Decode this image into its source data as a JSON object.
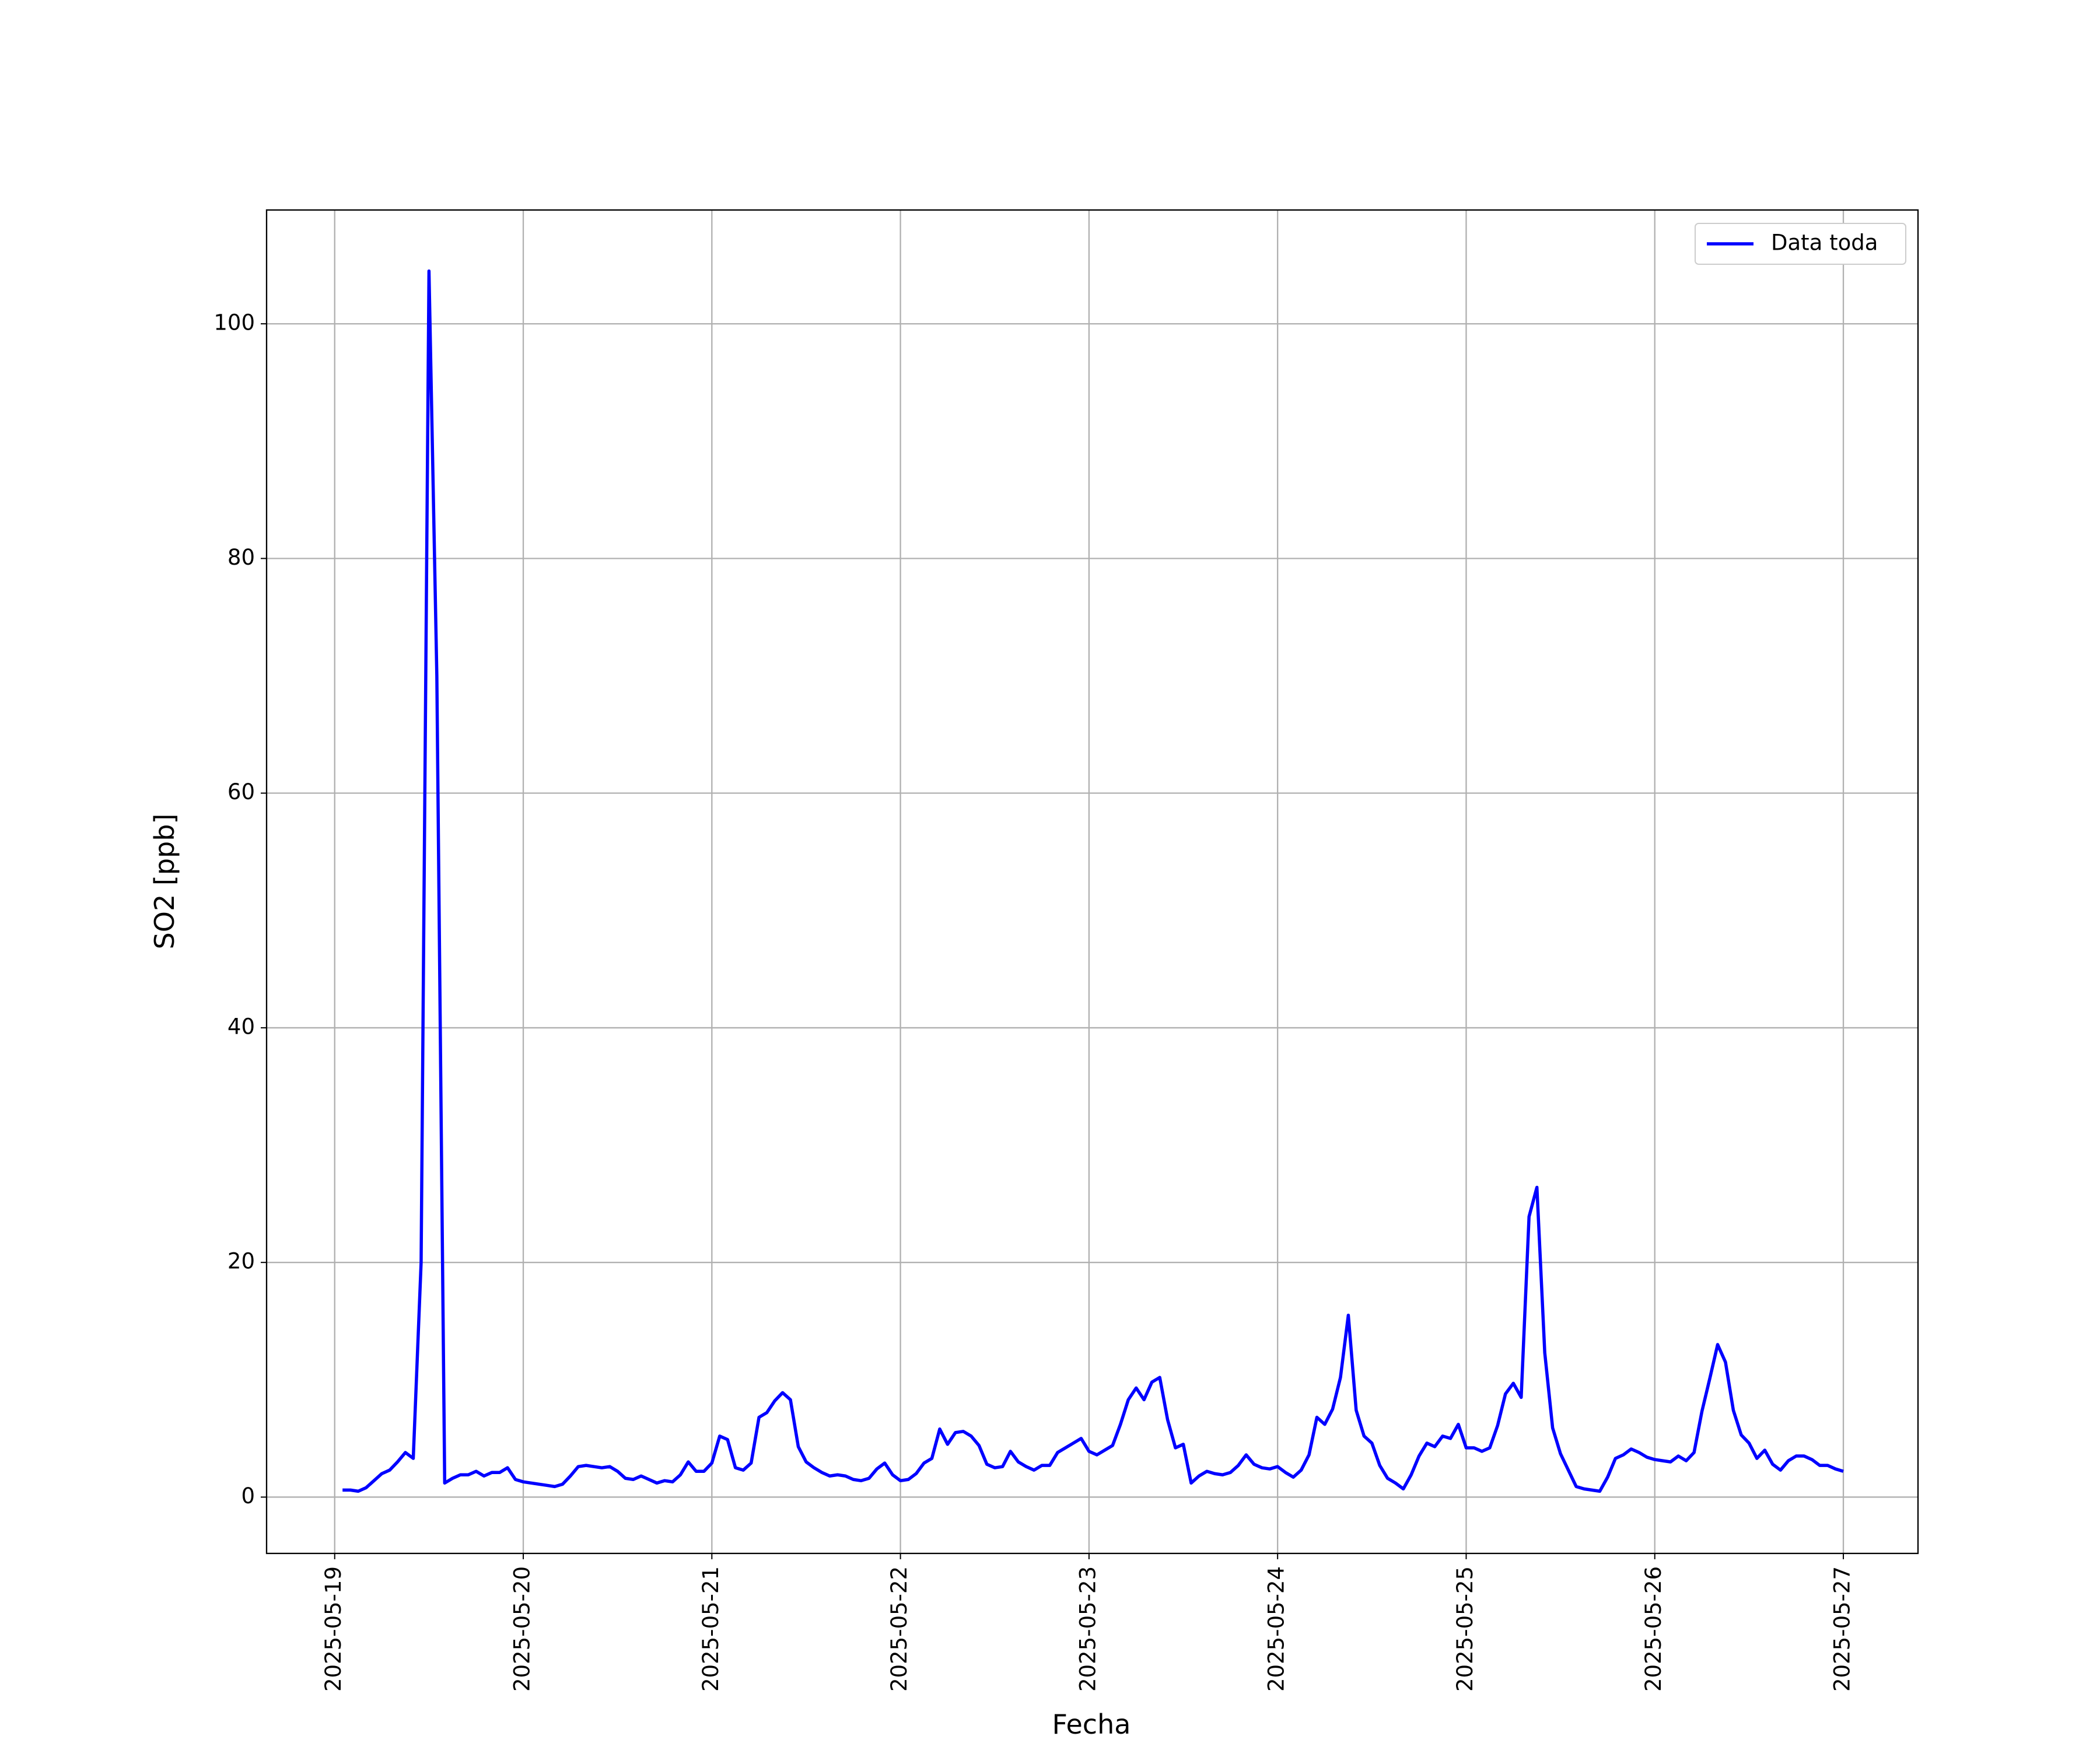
{
  "chart_data": {
    "type": "line",
    "xlabel": "Fecha",
    "ylabel": "SO2 [ppb]",
    "x": [
      "2025-05-19 01:00",
      "2025-05-19 02:00",
      "2025-05-19 03:00",
      "2025-05-19 04:00",
      "2025-05-19 05:00",
      "2025-05-19 06:00",
      "2025-05-19 07:00",
      "2025-05-19 08:00",
      "2025-05-19 09:00",
      "2025-05-19 10:00",
      "2025-05-19 11:00",
      "2025-05-19 12:00",
      "2025-05-19 13:00",
      "2025-05-19 14:00",
      "2025-05-19 15:00",
      "2025-05-19 16:00",
      "2025-05-19 17:00",
      "2025-05-19 18:00",
      "2025-05-19 19:00",
      "2025-05-19 20:00",
      "2025-05-19 21:00",
      "2025-05-19 22:00",
      "2025-05-19 23:00",
      "2025-05-20 00:00",
      "2025-05-20 01:00",
      "2025-05-20 02:00",
      "2025-05-20 03:00",
      "2025-05-20 04:00",
      "2025-05-20 05:00",
      "2025-05-20 06:00",
      "2025-05-20 07:00",
      "2025-05-20 08:00",
      "2025-05-20 09:00",
      "2025-05-20 10:00",
      "2025-05-20 11:00",
      "2025-05-20 12:00",
      "2025-05-20 13:00",
      "2025-05-20 14:00",
      "2025-05-20 15:00",
      "2025-05-20 16:00",
      "2025-05-20 17:00",
      "2025-05-20 18:00",
      "2025-05-20 19:00",
      "2025-05-20 20:00",
      "2025-05-20 21:00",
      "2025-05-20 22:00",
      "2025-05-20 23:00",
      "2025-05-21 00:00",
      "2025-05-21 01:00",
      "2025-05-21 02:00",
      "2025-05-21 03:00",
      "2025-05-21 04:00",
      "2025-05-21 05:00",
      "2025-05-21 06:00",
      "2025-05-21 07:00",
      "2025-05-21 08:00",
      "2025-05-21 09:00",
      "2025-05-21 10:00",
      "2025-05-21 11:00",
      "2025-05-21 12:00",
      "2025-05-21 13:00",
      "2025-05-21 14:00",
      "2025-05-21 15:00",
      "2025-05-21 16:00",
      "2025-05-21 17:00",
      "2025-05-21 18:00",
      "2025-05-21 19:00",
      "2025-05-21 20:00",
      "2025-05-21 21:00",
      "2025-05-21 22:00",
      "2025-05-21 23:00",
      "2025-05-22 00:00",
      "2025-05-22 01:00",
      "2025-05-22 02:00",
      "2025-05-22 03:00",
      "2025-05-22 04:00",
      "2025-05-22 05:00",
      "2025-05-22 06:00",
      "2025-05-22 07:00",
      "2025-05-22 08:00",
      "2025-05-22 09:00",
      "2025-05-22 10:00",
      "2025-05-22 11:00",
      "2025-05-22 12:00",
      "2025-05-22 13:00",
      "2025-05-22 14:00",
      "2025-05-22 15:00",
      "2025-05-22 16:00",
      "2025-05-22 17:00",
      "2025-05-22 18:00",
      "2025-05-22 19:00",
      "2025-05-22 20:00",
      "2025-05-22 21:00",
      "2025-05-22 22:00",
      "2025-05-22 23:00",
      "2025-05-23 00:00",
      "2025-05-23 01:00",
      "2025-05-23 02:00",
      "2025-05-23 03:00",
      "2025-05-23 04:00",
      "2025-05-23 05:00",
      "2025-05-23 06:00",
      "2025-05-23 07:00",
      "2025-05-23 08:00",
      "2025-05-23 09:00",
      "2025-05-23 10:00",
      "2025-05-23 11:00",
      "2025-05-23 12:00",
      "2025-05-23 13:00",
      "2025-05-23 14:00",
      "2025-05-23 15:00",
      "2025-05-23 16:00",
      "2025-05-23 17:00",
      "2025-05-23 18:00",
      "2025-05-23 19:00",
      "2025-05-23 20:00",
      "2025-05-23 21:00",
      "2025-05-23 22:00",
      "2025-05-23 23:00",
      "2025-05-24 00:00",
      "2025-05-24 01:00",
      "2025-05-24 02:00",
      "2025-05-24 03:00",
      "2025-05-24 04:00",
      "2025-05-24 05:00",
      "2025-05-24 06:00",
      "2025-05-24 07:00",
      "2025-05-24 08:00",
      "2025-05-24 09:00",
      "2025-05-24 10:00",
      "2025-05-24 11:00",
      "2025-05-24 12:00",
      "2025-05-24 13:00",
      "2025-05-24 14:00",
      "2025-05-24 15:00",
      "2025-05-24 16:00",
      "2025-05-24 17:00",
      "2025-05-24 18:00",
      "2025-05-24 19:00",
      "2025-05-24 20:00",
      "2025-05-24 21:00",
      "2025-05-24 22:00",
      "2025-05-24 23:00",
      "2025-05-25 00:00",
      "2025-05-25 01:00",
      "2025-05-25 02:00",
      "2025-05-25 03:00",
      "2025-05-25 04:00",
      "2025-05-25 05:00",
      "2025-05-25 06:00",
      "2025-05-25 07:00",
      "2025-05-25 08:00",
      "2025-05-25 09:00",
      "2025-05-25 10:00",
      "2025-05-25 11:00",
      "2025-05-25 12:00",
      "2025-05-25 13:00",
      "2025-05-25 14:00",
      "2025-05-25 15:00",
      "2025-05-25 16:00",
      "2025-05-25 17:00",
      "2025-05-25 18:00",
      "2025-05-25 19:00",
      "2025-05-25 20:00",
      "2025-05-25 21:00",
      "2025-05-25 22:00",
      "2025-05-25 23:00",
      "2025-05-26 00:00",
      "2025-05-26 01:00",
      "2025-05-26 02:00",
      "2025-05-26 03:00",
      "2025-05-26 04:00",
      "2025-05-26 05:00",
      "2025-05-26 06:00",
      "2025-05-26 07:00",
      "2025-05-26 08:00",
      "2025-05-26 09:00",
      "2025-05-26 10:00",
      "2025-05-26 11:00",
      "2025-05-26 12:00",
      "2025-05-26 13:00",
      "2025-05-26 14:00",
      "2025-05-26 15:00",
      "2025-05-26 16:00",
      "2025-05-26 17:00",
      "2025-05-26 18:00",
      "2025-05-26 19:00",
      "2025-05-26 20:00",
      "2025-05-26 21:00",
      "2025-05-26 22:00",
      "2025-05-26 23:00",
      "2025-05-27 00:00"
    ],
    "series": [
      {
        "name": "Data toda",
        "color": "#0000ff",
        "values": [
          0.6,
          0.6,
          0.5,
          0.8,
          1.4,
          2.0,
          2.3,
          3.0,
          3.8,
          3.3,
          20,
          104.5,
          70,
          1.2,
          1.6,
          1.9,
          1.9,
          2.2,
          1.8,
          2.1,
          2.1,
          2.5,
          1.5,
          1.3,
          1.2,
          1.1,
          1.0,
          0.9,
          1.1,
          1.8,
          2.6,
          2.7,
          2.6,
          2.5,
          2.6,
          2.2,
          1.6,
          1.5,
          1.8,
          1.5,
          1.2,
          1.4,
          1.3,
          1.9,
          3.0,
          2.2,
          2.2,
          2.9,
          5.2,
          4.9,
          2.5,
          2.3,
          2.9,
          6.8,
          7.2,
          8.2,
          8.9,
          8.3,
          4.3,
          3.0,
          2.5,
          2.1,
          1.8,
          1.9,
          1.8,
          1.5,
          1.4,
          1.6,
          2.4,
          2.9,
          1.9,
          1.4,
          1.5,
          2.0,
          2.9,
          3.3,
          5.8,
          4.5,
          5.5,
          5.6,
          5.2,
          4.4,
          2.8,
          2.5,
          2.6,
          3.9,
          3.0,
          2.6,
          2.3,
          2.7,
          2.7,
          3.8,
          4.2,
          4.6,
          5.0,
          3.9,
          3.6,
          4.0,
          4.4,
          6.2,
          8.3,
          9.3,
          8.3,
          9.8,
          10.2,
          6.6,
          4.2,
          4.5,
          1.2,
          1.8,
          2.2,
          2.0,
          1.9,
          2.1,
          2.7,
          3.6,
          2.8,
          2.5,
          2.4,
          2.6,
          2.1,
          1.7,
          2.3,
          3.6,
          6.8,
          6.2,
          7.5,
          10.2,
          15.5,
          7.4,
          5.2,
          4.6,
          2.7,
          1.6,
          1.2,
          0.7,
          1.9,
          3.5,
          4.6,
          4.3,
          5.2,
          5.0,
          6.2,
          4.2,
          4.2,
          3.9,
          4.2,
          6.1,
          8.8,
          9.7,
          8.5,
          23.9,
          26.4,
          12.3,
          5.9,
          3.7,
          2.3,
          0.9,
          0.7,
          0.6,
          0.5,
          1.7,
          3.3,
          3.6,
          4.1,
          3.8,
          3.4,
          3.2,
          3.1,
          3.0,
          3.5,
          3.1,
          3.8,
          7.3,
          10.1,
          13.0,
          11.5,
          7.4,
          5.3,
          4.6,
          3.3,
          4.0,
          2.8,
          2.3,
          3.1,
          3.5,
          3.5,
          3.2,
          2.7,
          2.7,
          2.4,
          2.2
        ]
      }
    ],
    "xlim": [
      "2025-05-18 15:20",
      "2025-05-27 09:30"
    ],
    "xticks": [
      "2025-05-19",
      "2025-05-20",
      "2025-05-21",
      "2025-05-22",
      "2025-05-23",
      "2025-05-24",
      "2025-05-25",
      "2025-05-26",
      "2025-05-27"
    ],
    "ylim": [
      -4.8,
      109.7
    ],
    "yticks": [
      0,
      20,
      40,
      60,
      80,
      100
    ],
    "grid": true,
    "legend": "upper right"
  }
}
